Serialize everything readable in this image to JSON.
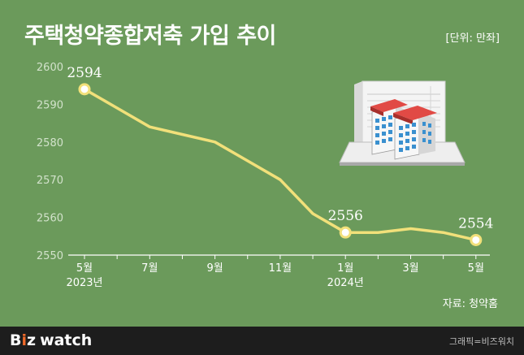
{
  "header": {
    "title": "주택청약종합저축 가입 추이",
    "unit": "[단위: 만좌]"
  },
  "source": "자료: 청약홈",
  "footer": {
    "logo_b": "B",
    "logo_i": "i",
    "logo_z": "z",
    "logo_watch": "watch",
    "credit": "그래픽=비즈워치"
  },
  "colors": {
    "background": "#6b9a5b",
    "line": "#f1e07a",
    "footer": "#1d1d1d",
    "logo_accent": "#f06a2a"
  },
  "illustration": "apartment-buildings-on-document-icon",
  "chart_data": {
    "type": "line",
    "title": "주택청약종합저축 가입 추이",
    "unit": "만좌",
    "x": [
      "2023-05",
      "2023-06",
      "2023-07",
      "2023-08",
      "2023-09",
      "2023-10",
      "2023-11",
      "2023-12",
      "2024-01",
      "2024-02",
      "2024-03",
      "2024-04",
      "2024-05"
    ],
    "values": [
      2594,
      2589,
      2584,
      2582,
      2580,
      2575,
      2570,
      2561,
      2556,
      2556,
      2557,
      2556,
      2554
    ],
    "ylim": [
      2550,
      2600
    ],
    "yticks": [
      2550,
      2560,
      2570,
      2580,
      2590,
      2600
    ],
    "xtick_labels": [
      {
        "index": 0,
        "label": "5월",
        "year": "2023년"
      },
      {
        "index": 2,
        "label": "7월",
        "year": ""
      },
      {
        "index": 4,
        "label": "9월",
        "year": ""
      },
      {
        "index": 6,
        "label": "11월",
        "year": ""
      },
      {
        "index": 8,
        "label": "1월",
        "year": "2024년"
      },
      {
        "index": 10,
        "label": "3월",
        "year": ""
      },
      {
        "index": 12,
        "label": "5월",
        "year": ""
      }
    ],
    "data_labels": [
      {
        "index": 0,
        "text": "2594"
      },
      {
        "index": 8,
        "text": "2556"
      },
      {
        "index": 12,
        "text": "2554"
      }
    ],
    "markers_at": [
      0,
      8,
      12
    ],
    "grid": false,
    "legend": "none"
  }
}
